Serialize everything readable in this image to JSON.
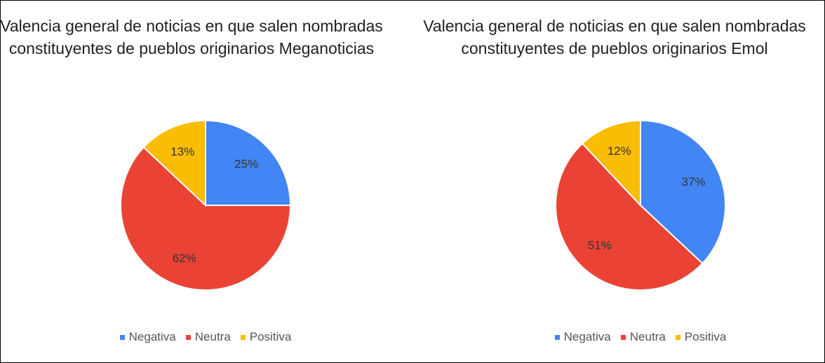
{
  "chart_data": [
    {
      "type": "pie",
      "title": "Valencia general de noticias en que salen nombradas constituyentes de pueblos originarios Meganoticias",
      "categories": [
        "Negativa",
        "Neutra",
        "Positiva"
      ],
      "values": [
        25,
        62,
        13
      ],
      "value_labels": [
        "25%",
        "62%",
        "13%"
      ],
      "colors": [
        "#4285f4",
        "#ea4335",
        "#fbbc04"
      ],
      "legend": "bottom"
    },
    {
      "type": "pie",
      "title": "Valencia general de noticias en que salen nombradas constituyentes de pueblos originarios Emol",
      "categories": [
        "Negativa",
        "Neutra",
        "Positiva"
      ],
      "values": [
        37,
        51,
        12
      ],
      "value_labels": [
        "37%",
        "51%",
        "12%"
      ],
      "colors": [
        "#4285f4",
        "#ea4335",
        "#fbbc04"
      ],
      "legend": "bottom"
    }
  ]
}
